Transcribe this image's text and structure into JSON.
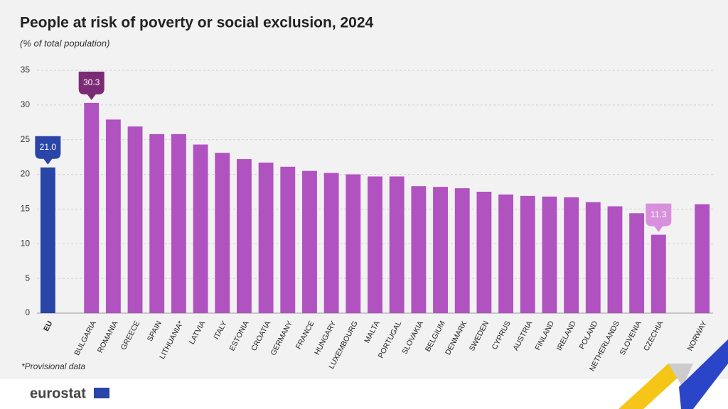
{
  "chart_data": {
    "type": "bar",
    "title": "People at risk of poverty or social exclusion, 2024",
    "subtitle": "(% of total population)",
    "note": "*Provisional data",
    "logo": "eurostat",
    "categories": [
      "EU",
      null,
      "BULGARIA",
      "ROMANIA",
      "GREECE",
      "SPAIN",
      "LITHUANIA*",
      "LATVIA",
      "ITALY",
      "ESTONIA",
      "CROATIA",
      "GERMANY",
      "FRANCE",
      "HUNGARY",
      "LUXEMBOURG",
      "MALTA",
      "PORTUGAL",
      "SLOVAKIA",
      "BELGIUM",
      "DENMARK",
      "SWEDEN",
      "CYPRUS",
      "AUSTRIA",
      "FINLAND",
      "IRELAND",
      "POLAND",
      "NETHERLANDS",
      "SLOVENIA",
      "CZECHIA",
      null,
      "NORWAY"
    ],
    "values": [
      21.0,
      null,
      30.3,
      27.9,
      26.9,
      25.8,
      25.8,
      24.3,
      23.1,
      22.2,
      21.7,
      21.1,
      20.5,
      20.2,
      20.0,
      19.7,
      19.7,
      18.3,
      18.2,
      18.0,
      17.5,
      17.1,
      16.9,
      16.8,
      16.7,
      16.0,
      15.4,
      14.4,
      11.3,
      null,
      15.7
    ],
    "value_labels": [
      "21.0",
      null,
      "30.3",
      null,
      null,
      null,
      null,
      null,
      null,
      null,
      null,
      null,
      null,
      null,
      null,
      null,
      null,
      null,
      null,
      null,
      null,
      null,
      null,
      null,
      null,
      null,
      null,
      null,
      "11.3",
      null,
      null
    ],
    "color": "#b052c0",
    "highlight": {
      "index": 0,
      "color": "#2a45a8"
    },
    "callout_colors": [
      "#2a45a8",
      null,
      "#7b2b74",
      null,
      null,
      null,
      null,
      null,
      null,
      null,
      null,
      null,
      null,
      null,
      null,
      null,
      null,
      null,
      null,
      null,
      null,
      null,
      null,
      null,
      null,
      null,
      null,
      null,
      "#d890dc",
      null,
      null
    ],
    "ylim": [
      0,
      35
    ],
    "yticks": [
      0,
      5,
      10,
      15,
      20,
      25,
      30,
      35
    ],
    "grid": true
  }
}
